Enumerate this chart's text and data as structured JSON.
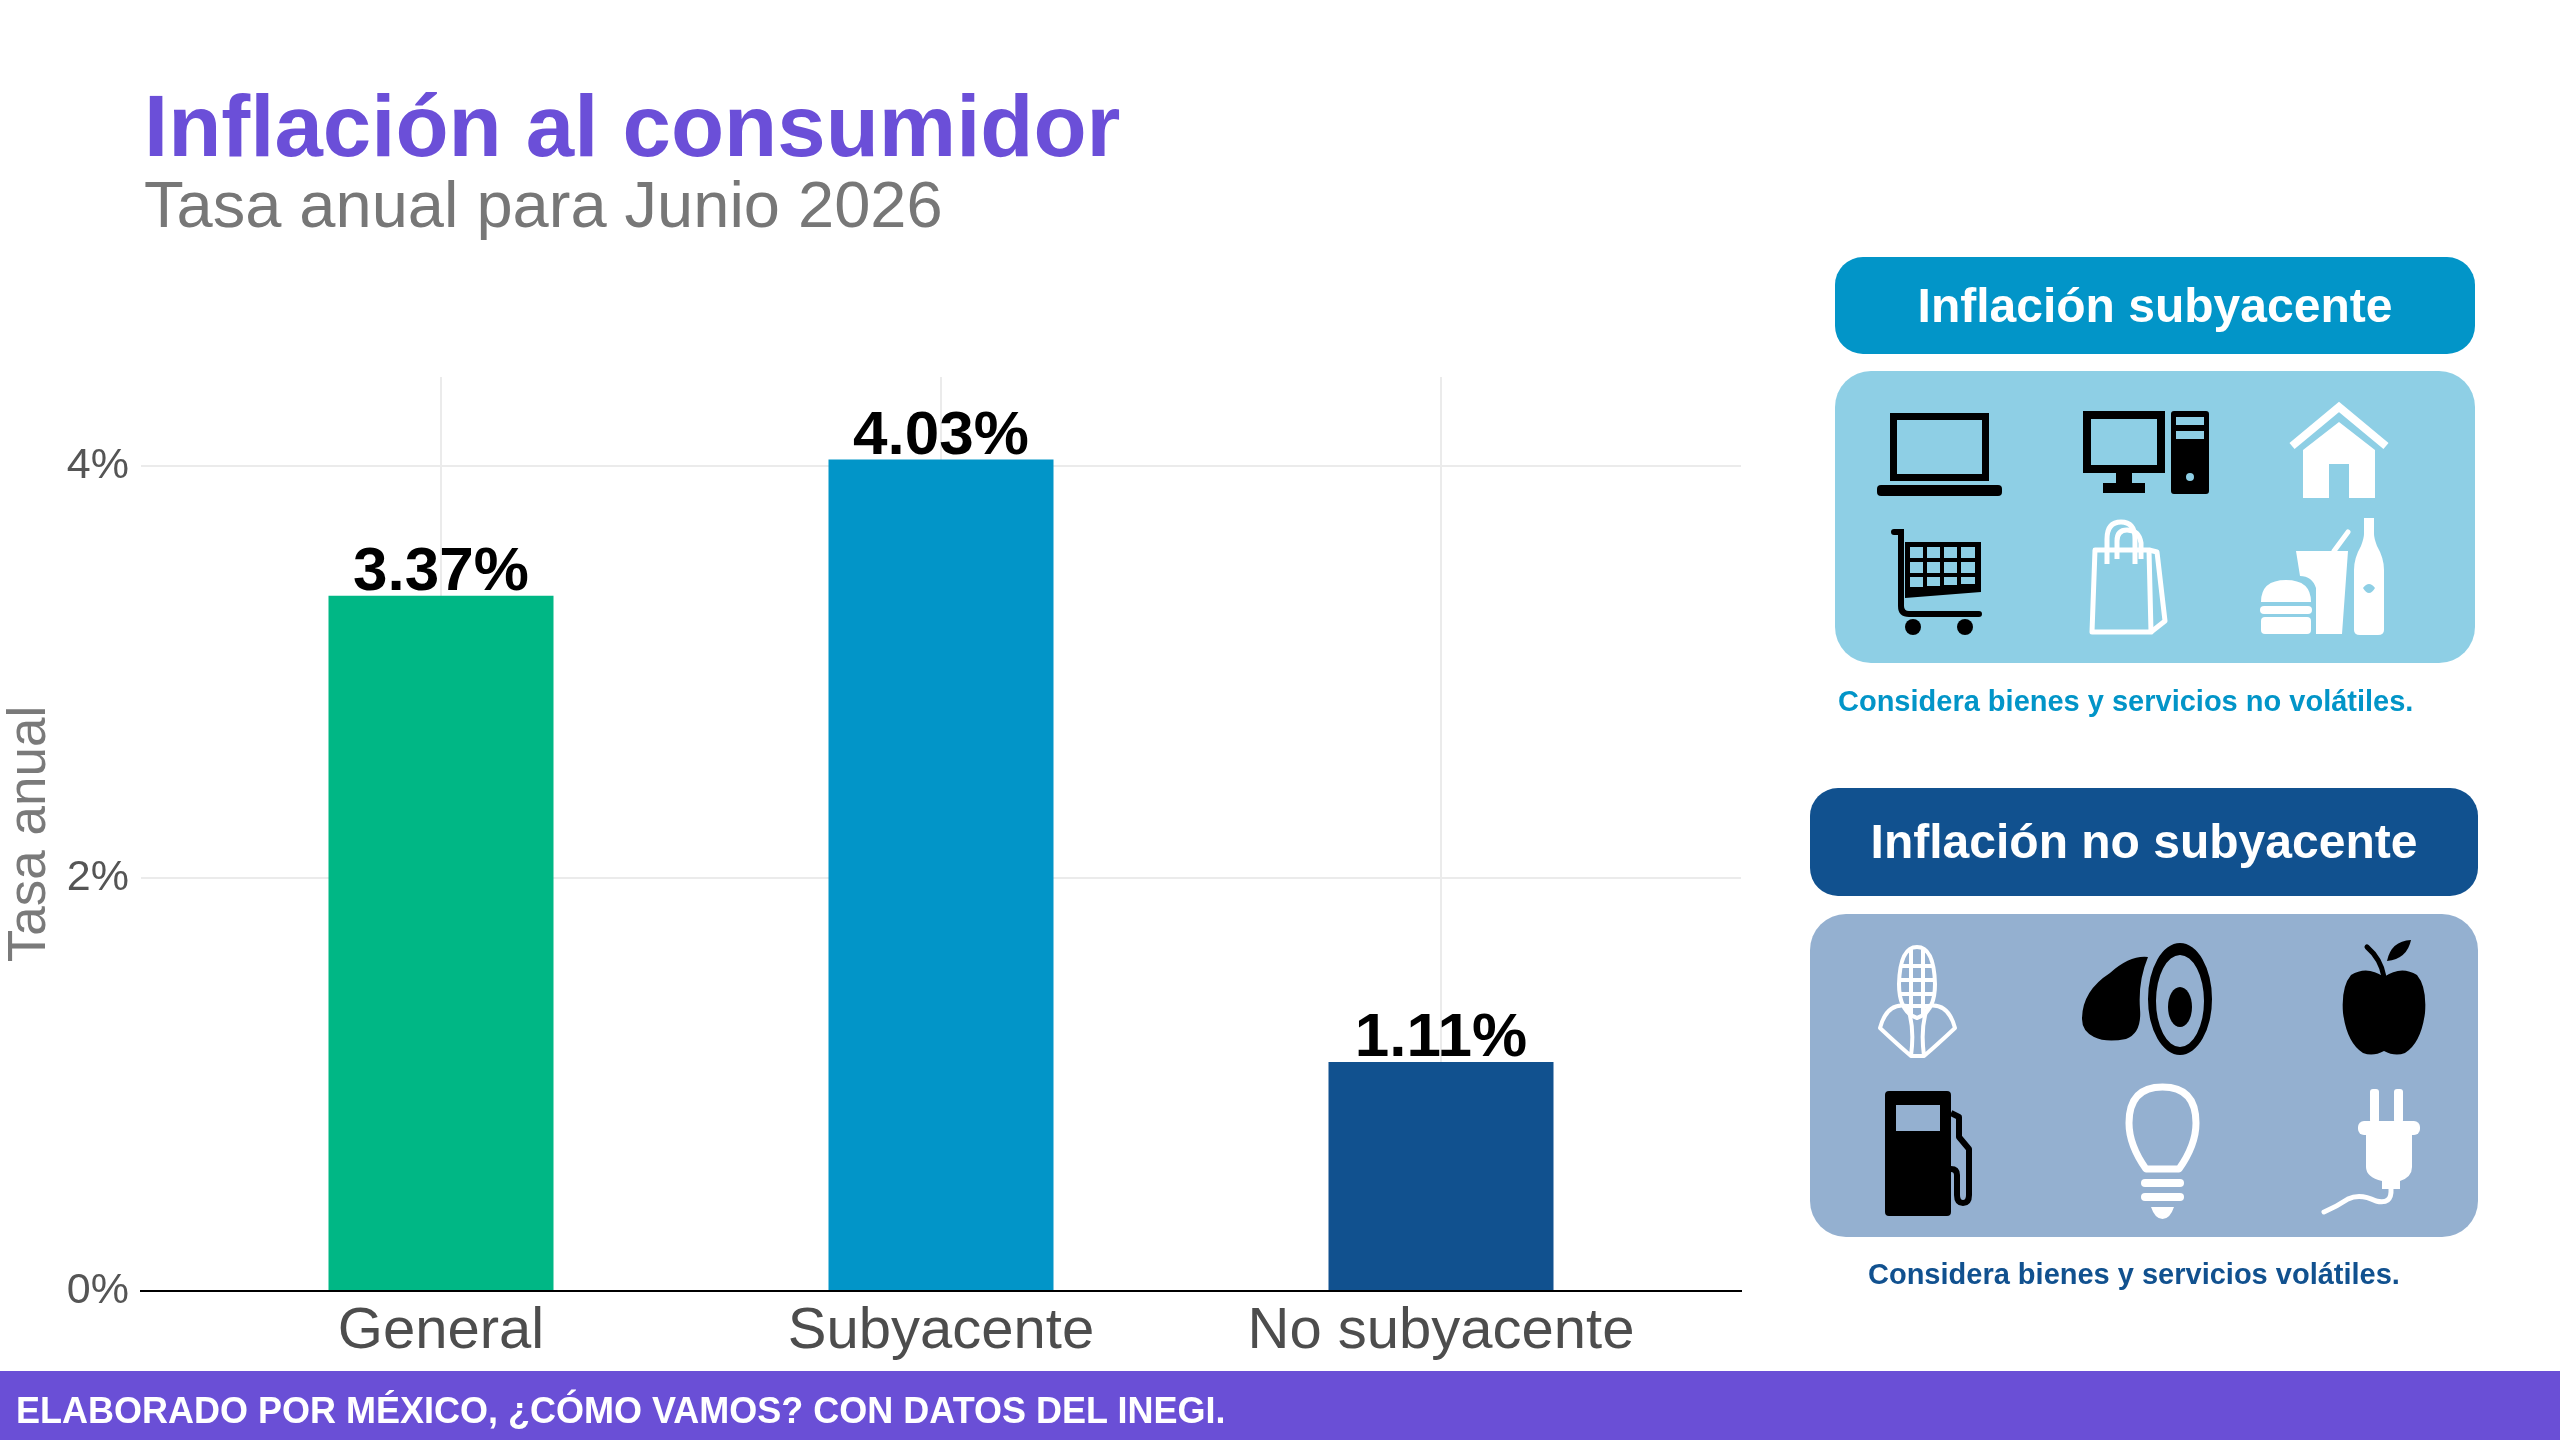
{
  "chart_data": {
    "type": "bar",
    "title": "Inflación al consumidor",
    "subtitle": "Tasa anual para Junio 2026",
    "ylabel": "Tasa anual",
    "categories": [
      "General",
      "Subyacente",
      "No subyacente"
    ],
    "values": [
      3.37,
      4.03,
      1.11
    ],
    "colors": [
      "#00b785",
      "#0295c8",
      "#11518f"
    ],
    "value_labels": [
      "3.37%",
      "4.03%",
      "1.11%"
    ],
    "ylim": [
      0,
      4.43
    ],
    "yticks": [
      {
        "value": 0,
        "label": "0%"
      },
      {
        "value": 2,
        "label": "2%"
      },
      {
        "value": 4,
        "label": "4%"
      }
    ],
    "grid": true,
    "annotations": [
      "Inflación subyacente",
      "Considera bienes y servicios no volátiles.",
      "Inflación no subyacente",
      "Considera bienes y servicios volátiles.",
      "ELABORADO POR MÉXICO, ¿CÓMO VAMOS? CON DATOS DEL INEGI."
    ]
  }
}
